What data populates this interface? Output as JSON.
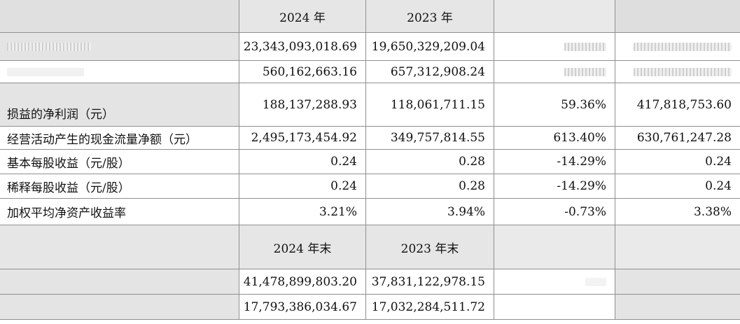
{
  "header": {
    "col1": "2024 年",
    "col2": "2023 年",
    "col3": "",
    "col4": ""
  },
  "rows": [
    {
      "label": "",
      "v2024": "23,343,093,018.69",
      "v2023": "19,650,329,209.04",
      "change": "",
      "v2022": ""
    },
    {
      "label": "",
      "v2024": "560,162,663.16",
      "v2023": "657,312,908.24",
      "change": "",
      "v2022": ""
    },
    {
      "label": "损益的净利润（元）",
      "v2024": "188,137,288.93",
      "v2023": "118,061,711.15",
      "change": "59.36%",
      "v2022": "417,818,753.60"
    },
    {
      "label": "经营活动产生的现金流量净额（元）",
      "v2024": "2,495,173,454.92",
      "v2023": "349,757,814.55",
      "change": "613.40%",
      "v2022": "630,761,247.28"
    },
    {
      "label": "基本每股收益（元/股）",
      "v2024": "0.24",
      "v2023": "0.28",
      "change": "-14.29%",
      "v2022": "0.24"
    },
    {
      "label": "稀释每股收益（元/股）",
      "v2024": "0.24",
      "v2023": "0.28",
      "change": "-14.29%",
      "v2022": "0.24"
    },
    {
      "label": "加权平均净资产收益率",
      "v2024": "3.21%",
      "v2023": "3.94%",
      "change": "-0.73%",
      "v2022": "3.38%"
    }
  ],
  "header2": {
    "col1": "2024 年末",
    "col2": "2023 年末"
  },
  "rows2": [
    {
      "label": "",
      "v2024": "41,478,899,803.20",
      "v2023": "37,831,122,978.15",
      "change": "",
      "v2022": ""
    },
    {
      "label": "",
      "v2024": "17,793,386,034.67",
      "v2023": "17,032,284,511.72",
      "change": "",
      "v2022": ""
    }
  ]
}
